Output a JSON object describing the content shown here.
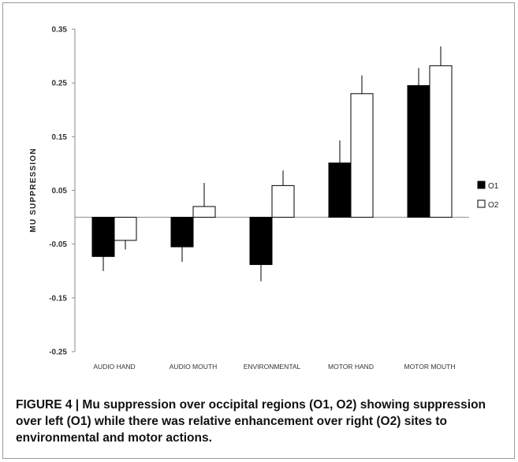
{
  "figure": {
    "caption": "FIGURE 4 | Mu suppression over occipital regions (O1, O2) showing suppression over left (O1) while there was relative enhancement over right (O2) sites to environmental and motor actions."
  },
  "chart_data": {
    "type": "bar",
    "title": "",
    "xlabel": "",
    "ylabel": "MU SUPPRESSION",
    "categories": [
      "AUDIO HAND",
      "AUDIO MOUTH",
      "ENVIRONMENTAL",
      "MOTOR HAND",
      "MOTOR MOUTH"
    ],
    "series": [
      {
        "name": "O1",
        "color": "#000000",
        "values": [
          -0.073,
          -0.055,
          -0.088,
          0.101,
          0.245
        ],
        "errors": [
          0.027,
          0.028,
          0.031,
          0.042,
          0.033
        ]
      },
      {
        "name": "O2",
        "color": "#ffffff",
        "values": [
          -0.043,
          0.02,
          0.059,
          0.23,
          0.282
        ],
        "errors": [
          0.017,
          0.044,
          0.028,
          0.034,
          0.036
        ]
      }
    ],
    "ylim": [
      -0.25,
      0.35
    ],
    "yticks": [
      -0.25,
      -0.15,
      -0.05,
      0.05,
      0.15,
      0.25,
      0.35
    ],
    "ytick_labels": [
      "-0.25",
      "-0.15",
      "-0.05",
      "0.05",
      "0.15",
      "0.25",
      "0.35"
    ],
    "error_bars": "one-sided",
    "grid": false,
    "legend_position": "right"
  }
}
